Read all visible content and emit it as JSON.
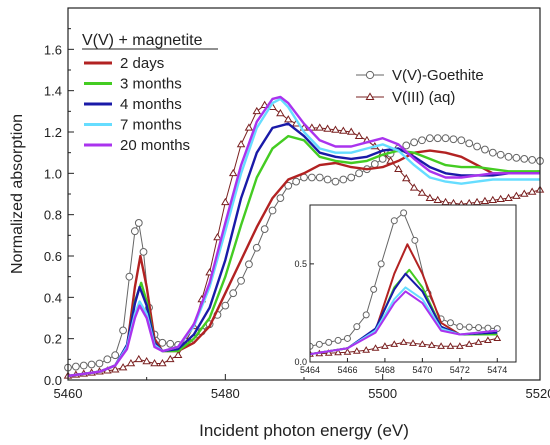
{
  "chart_data": {
    "type": "line",
    "title": "",
    "xlabel": "Incident photon energy (eV)",
    "ylabel": "Normalized absorption",
    "xlim": [
      5460,
      5520
    ],
    "ylim": [
      0,
      1.8
    ],
    "xticks": [
      "5460",
      "5480",
      "5500",
      "5520"
    ],
    "yticks": [
      "0.0",
      "0.2",
      "0.4",
      "0.6",
      "0.8",
      "1.0",
      "1.2",
      "1.4",
      "1.6"
    ],
    "legend_title": "V(V) + magnetite",
    "legend_right": [
      "V(V)-Goethite",
      "V(III) (aq)"
    ],
    "series": [
      {
        "name": "2 days",
        "color": "#b22222",
        "marker": "none",
        "points": [
          [
            5460,
            0.02
          ],
          [
            5464,
            0.04
          ],
          [
            5466,
            0.07
          ],
          [
            5467.5,
            0.16
          ],
          [
            5468.5,
            0.45
          ],
          [
            5469.2,
            0.6
          ],
          [
            5470,
            0.45
          ],
          [
            5471,
            0.2
          ],
          [
            5472,
            0.14
          ],
          [
            5474,
            0.14
          ],
          [
            5476,
            0.18
          ],
          [
            5478,
            0.26
          ],
          [
            5480,
            0.42
          ],
          [
            5482,
            0.58
          ],
          [
            5484,
            0.74
          ],
          [
            5486,
            0.88
          ],
          [
            5488,
            0.97
          ],
          [
            5490,
            1.0
          ],
          [
            5492,
            1.04
          ],
          [
            5494,
            1.05
          ],
          [
            5496,
            1.03
          ],
          [
            5498,
            1.02
          ],
          [
            5500,
            1.03
          ],
          [
            5502,
            1.06
          ],
          [
            5504,
            1.1
          ],
          [
            5506,
            1.11
          ],
          [
            5508,
            1.1
          ],
          [
            5510,
            1.08
          ],
          [
            5512,
            1.04
          ],
          [
            5514,
            1.0
          ],
          [
            5516,
            1.0
          ],
          [
            5518,
            1.0
          ],
          [
            5520,
            1.01
          ]
        ]
      },
      {
        "name": "3 months",
        "color": "#44cc22",
        "marker": "none",
        "points": [
          [
            5460,
            0.02
          ],
          [
            5464,
            0.04
          ],
          [
            5466,
            0.07
          ],
          [
            5467.5,
            0.16
          ],
          [
            5468.5,
            0.38
          ],
          [
            5469.3,
            0.47
          ],
          [
            5470,
            0.38
          ],
          [
            5471,
            0.18
          ],
          [
            5472,
            0.14
          ],
          [
            5474,
            0.14
          ],
          [
            5476,
            0.2
          ],
          [
            5478,
            0.3
          ],
          [
            5480,
            0.5
          ],
          [
            5482,
            0.75
          ],
          [
            5484,
            0.98
          ],
          [
            5486,
            1.12
          ],
          [
            5488,
            1.18
          ],
          [
            5490,
            1.16
          ],
          [
            5492,
            1.08
          ],
          [
            5494,
            1.06
          ],
          [
            5496,
            1.05
          ],
          [
            5498,
            1.06
          ],
          [
            5500,
            1.09
          ],
          [
            5502,
            1.11
          ],
          [
            5504,
            1.1
          ],
          [
            5506,
            1.07
          ],
          [
            5508,
            1.04
          ],
          [
            5510,
            1.03
          ],
          [
            5512,
            1.03
          ],
          [
            5514,
            1.02
          ],
          [
            5516,
            1.01
          ],
          [
            5518,
            1.01
          ],
          [
            5520,
            1.01
          ]
        ]
      },
      {
        "name": "4 months",
        "color": "#1a1aa8",
        "marker": "none",
        "points": [
          [
            5460,
            0.02
          ],
          [
            5464,
            0.04
          ],
          [
            5466,
            0.07
          ],
          [
            5467.5,
            0.17
          ],
          [
            5468.5,
            0.37
          ],
          [
            5469.1,
            0.45
          ],
          [
            5470,
            0.36
          ],
          [
            5471,
            0.18
          ],
          [
            5472,
            0.14
          ],
          [
            5474,
            0.15
          ],
          [
            5476,
            0.22
          ],
          [
            5478,
            0.35
          ],
          [
            5480,
            0.58
          ],
          [
            5482,
            0.88
          ],
          [
            5484,
            1.1
          ],
          [
            5486,
            1.22
          ],
          [
            5488,
            1.24
          ],
          [
            5490,
            1.18
          ],
          [
            5492,
            1.1
          ],
          [
            5494,
            1.08
          ],
          [
            5496,
            1.07
          ],
          [
            5498,
            1.08
          ],
          [
            5500,
            1.11
          ],
          [
            5502,
            1.12
          ],
          [
            5504,
            1.08
          ],
          [
            5506,
            1.03
          ],
          [
            5508,
            1.0
          ],
          [
            5510,
            0.99
          ],
          [
            5512,
            0.99
          ],
          [
            5514,
            0.99
          ],
          [
            5516,
            1.0
          ],
          [
            5518,
            1.0
          ],
          [
            5520,
            1.0
          ]
        ]
      },
      {
        "name": "7 months",
        "color": "#66ddff",
        "marker": "none",
        "points": [
          [
            5460,
            0.02
          ],
          [
            5464,
            0.04
          ],
          [
            5466,
            0.07
          ],
          [
            5467.5,
            0.16
          ],
          [
            5468.5,
            0.32
          ],
          [
            5469.1,
            0.38
          ],
          [
            5470,
            0.32
          ],
          [
            5471,
            0.17
          ],
          [
            5472,
            0.14
          ],
          [
            5474,
            0.16
          ],
          [
            5476,
            0.26
          ],
          [
            5478,
            0.45
          ],
          [
            5480,
            0.72
          ],
          [
            5482,
            1.0
          ],
          [
            5484,
            1.22
          ],
          [
            5486,
            1.34
          ],
          [
            5487,
            1.36
          ],
          [
            5488,
            1.32
          ],
          [
            5490,
            1.2
          ],
          [
            5492,
            1.12
          ],
          [
            5494,
            1.1
          ],
          [
            5496,
            1.1
          ],
          [
            5498,
            1.12
          ],
          [
            5500,
            1.14
          ],
          [
            5502,
            1.11
          ],
          [
            5504,
            1.04
          ],
          [
            5506,
            0.98
          ],
          [
            5508,
            0.96
          ],
          [
            5510,
            0.95
          ],
          [
            5512,
            0.96
          ],
          [
            5514,
            0.97
          ],
          [
            5516,
            0.97
          ],
          [
            5518,
            0.97
          ],
          [
            5520,
            0.97
          ]
        ]
      },
      {
        "name": "20 months",
        "color": "#aa33ee",
        "marker": "none",
        "points": [
          [
            5460,
            0.02
          ],
          [
            5464,
            0.04
          ],
          [
            5466,
            0.07
          ],
          [
            5467.5,
            0.15
          ],
          [
            5468.5,
            0.3
          ],
          [
            5469.1,
            0.36
          ],
          [
            5470,
            0.3
          ],
          [
            5471,
            0.16
          ],
          [
            5472,
            0.14
          ],
          [
            5474,
            0.16
          ],
          [
            5476,
            0.27
          ],
          [
            5478,
            0.47
          ],
          [
            5480,
            0.76
          ],
          [
            5482,
            1.04
          ],
          [
            5484,
            1.25
          ],
          [
            5486,
            1.36
          ],
          [
            5487,
            1.37
          ],
          [
            5488,
            1.34
          ],
          [
            5490,
            1.24
          ],
          [
            5492,
            1.16
          ],
          [
            5494,
            1.13
          ],
          [
            5496,
            1.13
          ],
          [
            5498,
            1.15
          ],
          [
            5500,
            1.17
          ],
          [
            5502,
            1.14
          ],
          [
            5504,
            1.07
          ],
          [
            5506,
            1.01
          ],
          [
            5508,
            0.98
          ],
          [
            5510,
            0.98
          ],
          [
            5512,
            0.99
          ],
          [
            5514,
            1.0
          ],
          [
            5516,
            1.0
          ],
          [
            5518,
            1.0
          ],
          [
            5520,
            1.0
          ]
        ]
      },
      {
        "name": "V(V)-Goethite",
        "color": "#666666",
        "marker": "circle",
        "points": [
          [
            5460,
            0.06
          ],
          [
            5462,
            0.07
          ],
          [
            5464,
            0.08
          ],
          [
            5466,
            0.12
          ],
          [
            5467,
            0.24
          ],
          [
            5467.8,
            0.5
          ],
          [
            5468.5,
            0.72
          ],
          [
            5469,
            0.76
          ],
          [
            5469.6,
            0.62
          ],
          [
            5470.3,
            0.35
          ],
          [
            5471,
            0.22
          ],
          [
            5472,
            0.18
          ],
          [
            5474,
            0.17
          ],
          [
            5476,
            0.2
          ],
          [
            5478,
            0.27
          ],
          [
            5480,
            0.36
          ],
          [
            5482,
            0.48
          ],
          [
            5484,
            0.64
          ],
          [
            5486,
            0.82
          ],
          [
            5488,
            0.94
          ],
          [
            5490,
            0.98
          ],
          [
            5492,
            0.98
          ],
          [
            5494,
            0.96
          ],
          [
            5496,
            0.98
          ],
          [
            5498,
            1.02
          ],
          [
            5500,
            1.07
          ],
          [
            5502,
            1.12
          ],
          [
            5504,
            1.15
          ],
          [
            5506,
            1.17
          ],
          [
            5508,
            1.17
          ],
          [
            5510,
            1.16
          ],
          [
            5512,
            1.13
          ],
          [
            5514,
            1.1
          ],
          [
            5516,
            1.08
          ],
          [
            5518,
            1.07
          ],
          [
            5520,
            1.06
          ]
        ]
      },
      {
        "name": "V(III) (aq)",
        "color": "#7a2020",
        "marker": "triangle",
        "points": [
          [
            5460,
            0.02
          ],
          [
            5462,
            0.03
          ],
          [
            5464,
            0.04
          ],
          [
            5466,
            0.05
          ],
          [
            5467,
            0.06
          ],
          [
            5468,
            0.08
          ],
          [
            5469,
            0.1
          ],
          [
            5470,
            0.09
          ],
          [
            5471,
            0.08
          ],
          [
            5472,
            0.08
          ],
          [
            5474,
            0.12
          ],
          [
            5476,
            0.26
          ],
          [
            5478,
            0.52
          ],
          [
            5480,
            0.86
          ],
          [
            5482,
            1.14
          ],
          [
            5484,
            1.3
          ],
          [
            5485,
            1.33
          ],
          [
            5486,
            1.32
          ],
          [
            5488,
            1.26
          ],
          [
            5490,
            1.22
          ],
          [
            5492,
            1.22
          ],
          [
            5494,
            1.21
          ],
          [
            5496,
            1.2
          ],
          [
            5498,
            1.16
          ],
          [
            5500,
            1.1
          ],
          [
            5502,
            1.02
          ],
          [
            5504,
            0.93
          ],
          [
            5506,
            0.88
          ],
          [
            5508,
            0.86
          ],
          [
            5510,
            0.85
          ],
          [
            5512,
            0.86
          ],
          [
            5514,
            0.87
          ],
          [
            5516,
            0.88
          ],
          [
            5518,
            0.9
          ],
          [
            5520,
            0.92
          ]
        ]
      }
    ],
    "inset": {
      "xlim": [
        5464,
        5475
      ],
      "ylim": [
        0,
        0.8
      ],
      "xticks": [
        "5464",
        "5466",
        "5468",
        "5470",
        "5472",
        "5474"
      ],
      "yticks": [
        "0.0",
        "0.5"
      ]
    }
  }
}
